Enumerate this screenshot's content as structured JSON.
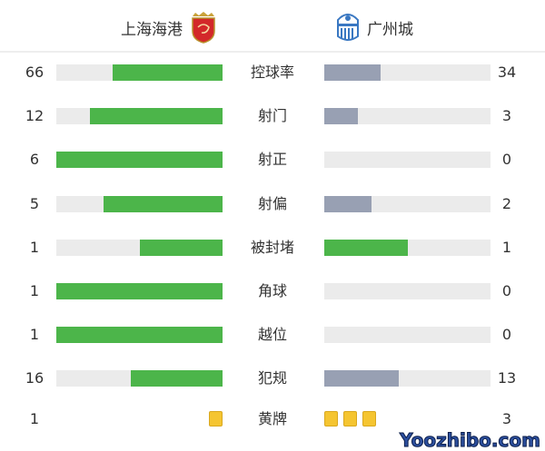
{
  "home_team": {
    "name": "上海海港",
    "logo": "shanghai-port-crest"
  },
  "away_team": {
    "name": "广州城",
    "logo": "guangzhou-city-crest"
  },
  "colors": {
    "home_fill": "#4cb54a",
    "away_fill": "#98a0b3",
    "track": "#ebebeb",
    "card": "#f5c531"
  },
  "stats": [
    {
      "label": "控球率",
      "home": "66",
      "away": "34",
      "home_frac": 0.66,
      "away_frac": 0.34,
      "away_color": "#98a0b3"
    },
    {
      "label": "射门",
      "home": "12",
      "away": "3",
      "home_frac": 0.8,
      "away_frac": 0.2,
      "away_color": "#98a0b3"
    },
    {
      "label": "射正",
      "home": "6",
      "away": "0",
      "home_frac": 1,
      "away_frac": 0,
      "away_color": "#98a0b3"
    },
    {
      "label": "射偏",
      "home": "5",
      "away": "2",
      "home_frac": 0.714,
      "away_frac": 0.286,
      "away_color": "#98a0b3"
    },
    {
      "label": "被封堵",
      "home": "1",
      "away": "1",
      "home_frac": 0.5,
      "away_frac": 0.5,
      "away_color": "#4cb54a"
    },
    {
      "label": "角球",
      "home": "1",
      "away": "0",
      "home_frac": 1,
      "away_frac": 0,
      "away_color": "#98a0b3"
    },
    {
      "label": "越位",
      "home": "1",
      "away": "0",
      "home_frac": 1,
      "away_frac": 0,
      "away_color": "#98a0b3"
    },
    {
      "label": "犯规",
      "home": "16",
      "away": "13",
      "home_frac": 0.552,
      "away_frac": 0.448,
      "away_color": "#98a0b3"
    }
  ],
  "yellow_cards": {
    "label": "黄牌",
    "home": "1",
    "away": "3",
    "home_count": 1,
    "away_count": 3
  },
  "watermark": "Yoozhibo.com"
}
